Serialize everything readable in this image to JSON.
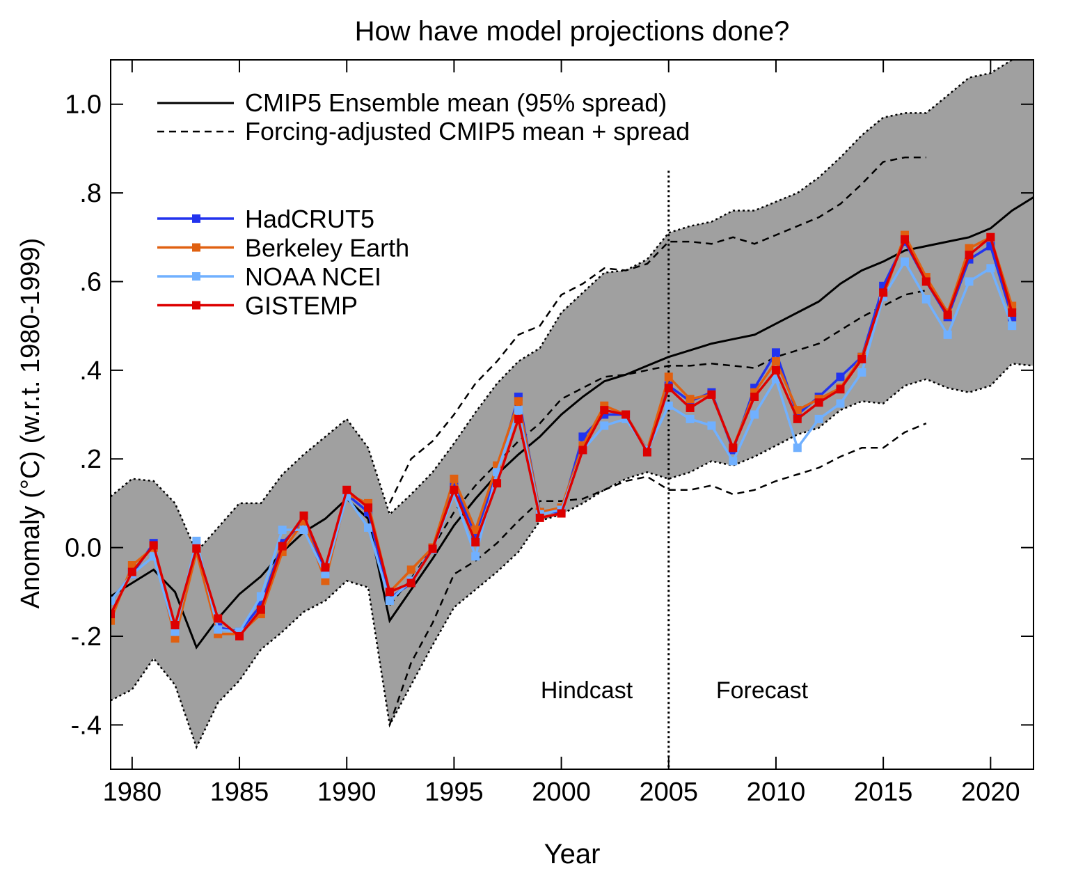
{
  "chart_data": {
    "type": "line",
    "title": "How have model projections done?",
    "xlabel": "Year",
    "ylabel": "Anomaly (°C) (w.r.t. 1980-1999)",
    "xlim": [
      1979,
      2022
    ],
    "ylim": [
      -0.5,
      1.1
    ],
    "x_ticks": [
      1980,
      1985,
      1990,
      1995,
      2000,
      2005,
      2010,
      2015,
      2020
    ],
    "y_ticks": [
      {
        "value": 1.0,
        "label": "1.0"
      },
      {
        "value": 0.8,
        "label": ".8"
      },
      {
        "value": 0.6,
        "label": ".6"
      },
      {
        "value": 0.4,
        "label": ".4"
      },
      {
        "value": 0.2,
        "label": ".2"
      },
      {
        "value": 0.0,
        "label": "0.0"
      },
      {
        "value": -0.2,
        "label": "-.2"
      },
      {
        "value": -0.4,
        "label": "-.4"
      }
    ],
    "grid": false,
    "legend_placement": "top-left",
    "annotations": {
      "hindcast": "Hindcast",
      "forecast": "Forecast",
      "divider_year": 2005
    },
    "model": {
      "mean_label": "CMIP5 Ensemble mean (95% spread)",
      "adjusted_label": "Forcing-adjusted CMIP5 mean + spread",
      "band_color": "#a0a0a0",
      "x_start": 1979,
      "mean": [
        -0.11,
        -0.08,
        -0.05,
        -0.1,
        -0.225,
        -0.16,
        -0.105,
        -0.065,
        -0.01,
        0.035,
        0.065,
        0.11,
        0.065,
        -0.165,
        -0.095,
        -0.025,
        0.05,
        0.11,
        0.165,
        0.21,
        0.25,
        0.3,
        0.34,
        0.375,
        0.39,
        0.41,
        0.43,
        0.445,
        0.46,
        0.47,
        0.48,
        0.505,
        0.53,
        0.555,
        0.595,
        0.625,
        0.645,
        0.67,
        0.68,
        0.69,
        0.7,
        0.72,
        0.76,
        0.79
      ],
      "upper": [
        0.115,
        0.155,
        0.15,
        0.1,
        -0.01,
        0.045,
        0.1,
        0.1,
        0.165,
        0.21,
        0.25,
        0.29,
        0.225,
        0.075,
        0.12,
        0.17,
        0.235,
        0.305,
        0.37,
        0.42,
        0.45,
        0.53,
        0.575,
        0.62,
        0.625,
        0.65,
        0.71,
        0.725,
        0.735,
        0.76,
        0.76,
        0.78,
        0.8,
        0.835,
        0.88,
        0.93,
        0.97,
        0.98,
        0.98,
        1.02,
        1.06,
        1.07,
        1.1,
        1.13
      ],
      "lower": [
        -0.345,
        -0.32,
        -0.25,
        -0.31,
        -0.45,
        -0.35,
        -0.3,
        -0.23,
        -0.19,
        -0.145,
        -0.12,
        -0.075,
        -0.09,
        -0.4,
        -0.31,
        -0.22,
        -0.135,
        -0.095,
        -0.055,
        -0.01,
        0.06,
        0.075,
        0.1,
        0.13,
        0.155,
        0.17,
        0.155,
        0.17,
        0.195,
        0.185,
        0.205,
        0.23,
        0.255,
        0.27,
        0.31,
        0.33,
        0.325,
        0.365,
        0.38,
        0.36,
        0.35,
        0.365,
        0.415,
        0.41
      ],
      "adjusted_x_start": 1992,
      "adjusted_mean": [
        -0.13,
        -0.07,
        0.0,
        0.08,
        0.14,
        0.19,
        0.24,
        0.28,
        0.335,
        0.36,
        0.385,
        0.39,
        0.4,
        0.41,
        0.41,
        0.415,
        0.41,
        0.405,
        0.43,
        0.445,
        0.46,
        0.49,
        0.52,
        0.545,
        0.57,
        0.58
      ],
      "adjusted_upper": [
        0.1,
        0.2,
        0.24,
        0.3,
        0.37,
        0.42,
        0.48,
        0.5,
        0.57,
        0.595,
        0.63,
        0.625,
        0.64,
        0.69,
        0.69,
        0.685,
        0.7,
        0.685,
        0.705,
        0.725,
        0.745,
        0.775,
        0.82,
        0.87,
        0.88,
        0.88
      ],
      "adjusted_lower": [
        -0.4,
        -0.26,
        -0.17,
        -0.06,
        -0.03,
        0.01,
        0.06,
        0.105,
        0.105,
        0.11,
        0.13,
        0.15,
        0.16,
        0.13,
        0.13,
        0.14,
        0.12,
        0.13,
        0.15,
        0.165,
        0.18,
        0.205,
        0.225,
        0.225,
        0.26,
        0.28
      ]
    },
    "x_obs_start": 1979,
    "series": [
      {
        "name": "HadCRUT5",
        "color": "#2233ee",
        "values": [
          -0.12,
          -0.06,
          0.01,
          -0.2,
          0.0,
          -0.18,
          -0.19,
          -0.13,
          0.01,
          0.06,
          -0.05,
          0.12,
          0.08,
          -0.115,
          -0.08,
          0.0,
          0.14,
          0.03,
          0.17,
          0.34,
          0.08,
          0.08,
          0.25,
          0.3,
          0.3,
          0.22,
          0.365,
          0.33,
          0.35,
          0.22,
          0.36,
          0.44,
          0.3,
          0.34,
          0.385,
          0.43,
          0.59,
          0.69,
          0.6,
          0.52,
          0.65,
          0.68,
          0.52
        ]
      },
      {
        "name": "Berkeley Earth",
        "color": "#e06010",
        "values": [
          -0.165,
          -0.04,
          0.0,
          -0.205,
          -0.01,
          -0.195,
          -0.195,
          -0.15,
          -0.01,
          0.06,
          -0.075,
          0.12,
          0.1,
          -0.1,
          -0.05,
          0.0,
          0.155,
          0.04,
          0.185,
          0.33,
          0.08,
          0.09,
          0.23,
          0.32,
          0.3,
          0.22,
          0.385,
          0.335,
          0.345,
          0.225,
          0.35,
          0.42,
          0.31,
          0.335,
          0.36,
          0.43,
          0.565,
          0.705,
          0.61,
          0.53,
          0.675,
          0.7,
          0.545
        ]
      },
      {
        "name": "NOAA NCEI",
        "color": "#70b0ff",
        "values": [
          -0.12,
          -0.06,
          -0.02,
          -0.19,
          0.015,
          -0.185,
          -0.19,
          -0.11,
          0.04,
          0.04,
          -0.06,
          0.115,
          0.045,
          -0.12,
          -0.075,
          -0.005,
          0.12,
          -0.02,
          0.17,
          0.31,
          0.075,
          0.085,
          0.22,
          0.275,
          0.29,
          0.22,
          0.32,
          0.29,
          0.275,
          0.195,
          0.3,
          0.38,
          0.225,
          0.29,
          0.325,
          0.395,
          0.565,
          0.645,
          0.56,
          0.48,
          0.6,
          0.63,
          0.5
        ]
      },
      {
        "name": "GISTEMP",
        "color": "#dd0000",
        "values": [
          -0.15,
          -0.055,
          0.005,
          -0.175,
          -0.002,
          -0.16,
          -0.2,
          -0.14,
          0.003,
          0.072,
          -0.045,
          0.13,
          0.09,
          -0.1,
          -0.08,
          -0.003,
          0.13,
          0.012,
          0.145,
          0.29,
          0.067,
          0.077,
          0.22,
          0.31,
          0.3,
          0.215,
          0.36,
          0.315,
          0.345,
          0.225,
          0.34,
          0.4,
          0.29,
          0.327,
          0.357,
          0.425,
          0.575,
          0.695,
          0.6,
          0.525,
          0.66,
          0.7,
          0.53
        ]
      }
    ]
  }
}
